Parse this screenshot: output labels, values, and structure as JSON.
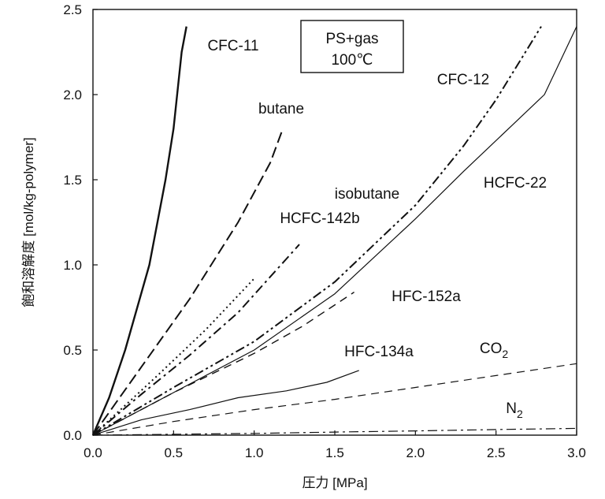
{
  "chart_data": {
    "type": "line",
    "legend_box": {
      "line1": "PS+gas",
      "line2": "100℃"
    },
    "xlabel": "圧力 [MPa]",
    "ylabel": "飽和溶解度 [mol/kg-polymer]",
    "xlim": [
      0.0,
      3.0
    ],
    "ylim": [
      0.0,
      2.5
    ],
    "x_ticks": [
      "0.0",
      "0.5",
      "1.0",
      "1.5",
      "2.0",
      "2.5",
      "3.0"
    ],
    "y_ticks": [
      "0.0",
      "0.5",
      "1.0",
      "1.5",
      "2.0",
      "2.5"
    ],
    "grid": false,
    "series": [
      {
        "name": "CFC-11",
        "label": "CFC-11",
        "sub": "",
        "style": "solid",
        "width": 2.4,
        "x": [
          0,
          0.1,
          0.2,
          0.35,
          0.45,
          0.5,
          0.55,
          0.58
        ],
        "y": [
          0,
          0.22,
          0.5,
          1.0,
          1.5,
          1.8,
          2.25,
          2.4
        ]
      },
      {
        "name": "butane",
        "label": "butane",
        "sub": "",
        "style": "longdash",
        "width": 2.0,
        "x": [
          0,
          0.3,
          0.6,
          0.9,
          1.1,
          1.17
        ],
        "y": [
          0,
          0.4,
          0.8,
          1.25,
          1.6,
          1.78
        ]
      },
      {
        "name": "isobutane",
        "label": "isobutane",
        "sub": "",
        "style": "dotted",
        "width": 2.0,
        "x": [
          0,
          0.4,
          0.7,
          1.0
        ],
        "y": [
          0,
          0.35,
          0.62,
          0.92
        ]
      },
      {
        "name": "HCFC-142b",
        "label": "HCFC-142b",
        "sub": "",
        "style": "dashdot",
        "width": 2.0,
        "x": [
          0,
          0.3,
          0.6,
          0.9,
          1.1,
          1.28
        ],
        "y": [
          0,
          0.24,
          0.47,
          0.72,
          0.93,
          1.12
        ]
      },
      {
        "name": "CFC-12",
        "label": "CFC-12",
        "sub": "",
        "style": "dashdotdot",
        "width": 2.0,
        "x": [
          0,
          0.5,
          1.0,
          1.5,
          2.0,
          2.3,
          2.5,
          2.65,
          2.78
        ],
        "y": [
          0,
          0.28,
          0.55,
          0.9,
          1.35,
          1.7,
          1.97,
          2.2,
          2.4
        ]
      },
      {
        "name": "HCFC-22",
        "label": "HCFC-22",
        "sub": "",
        "style": "thin",
        "width": 1.2,
        "x": [
          0,
          0.5,
          1.0,
          1.5,
          2.0,
          2.3,
          2.6,
          2.8,
          3.0
        ],
        "y": [
          0,
          0.25,
          0.5,
          0.83,
          1.27,
          1.55,
          1.82,
          2.0,
          2.4
        ]
      },
      {
        "name": "HFC-152a",
        "label": "HFC-152a",
        "sub": "",
        "style": "dashed",
        "width": 1.4,
        "x": [
          0,
          0.5,
          1.0,
          1.3,
          1.62
        ],
        "y": [
          0,
          0.25,
          0.48,
          0.64,
          0.84
        ]
      },
      {
        "name": "HFC-134a",
        "label": "HFC-134a",
        "sub": "",
        "style": "thin",
        "width": 1.2,
        "x": [
          0,
          0.3,
          0.6,
          0.9,
          1.2,
          1.45,
          1.65
        ],
        "y": [
          0,
          0.09,
          0.15,
          0.22,
          0.26,
          0.31,
          0.38
        ]
      },
      {
        "name": "CO2",
        "label": "CO",
        "sub": "2",
        "style": "dashed",
        "width": 1.2,
        "x": [
          0,
          0.5,
          1.0,
          1.5,
          2.0,
          2.5,
          3.0
        ],
        "y": [
          0,
          0.08,
          0.15,
          0.21,
          0.28,
          0.35,
          0.42
        ]
      },
      {
        "name": "N2",
        "label": "N",
        "sub": "2",
        "style": "dashdot",
        "width": 1.2,
        "x": [
          0,
          0.5,
          1.0,
          1.5,
          2.0,
          2.5,
          3.0
        ],
        "y": [
          0,
          0.005,
          0.01,
          0.018,
          0.025,
          0.033,
          0.04
        ]
      }
    ]
  }
}
